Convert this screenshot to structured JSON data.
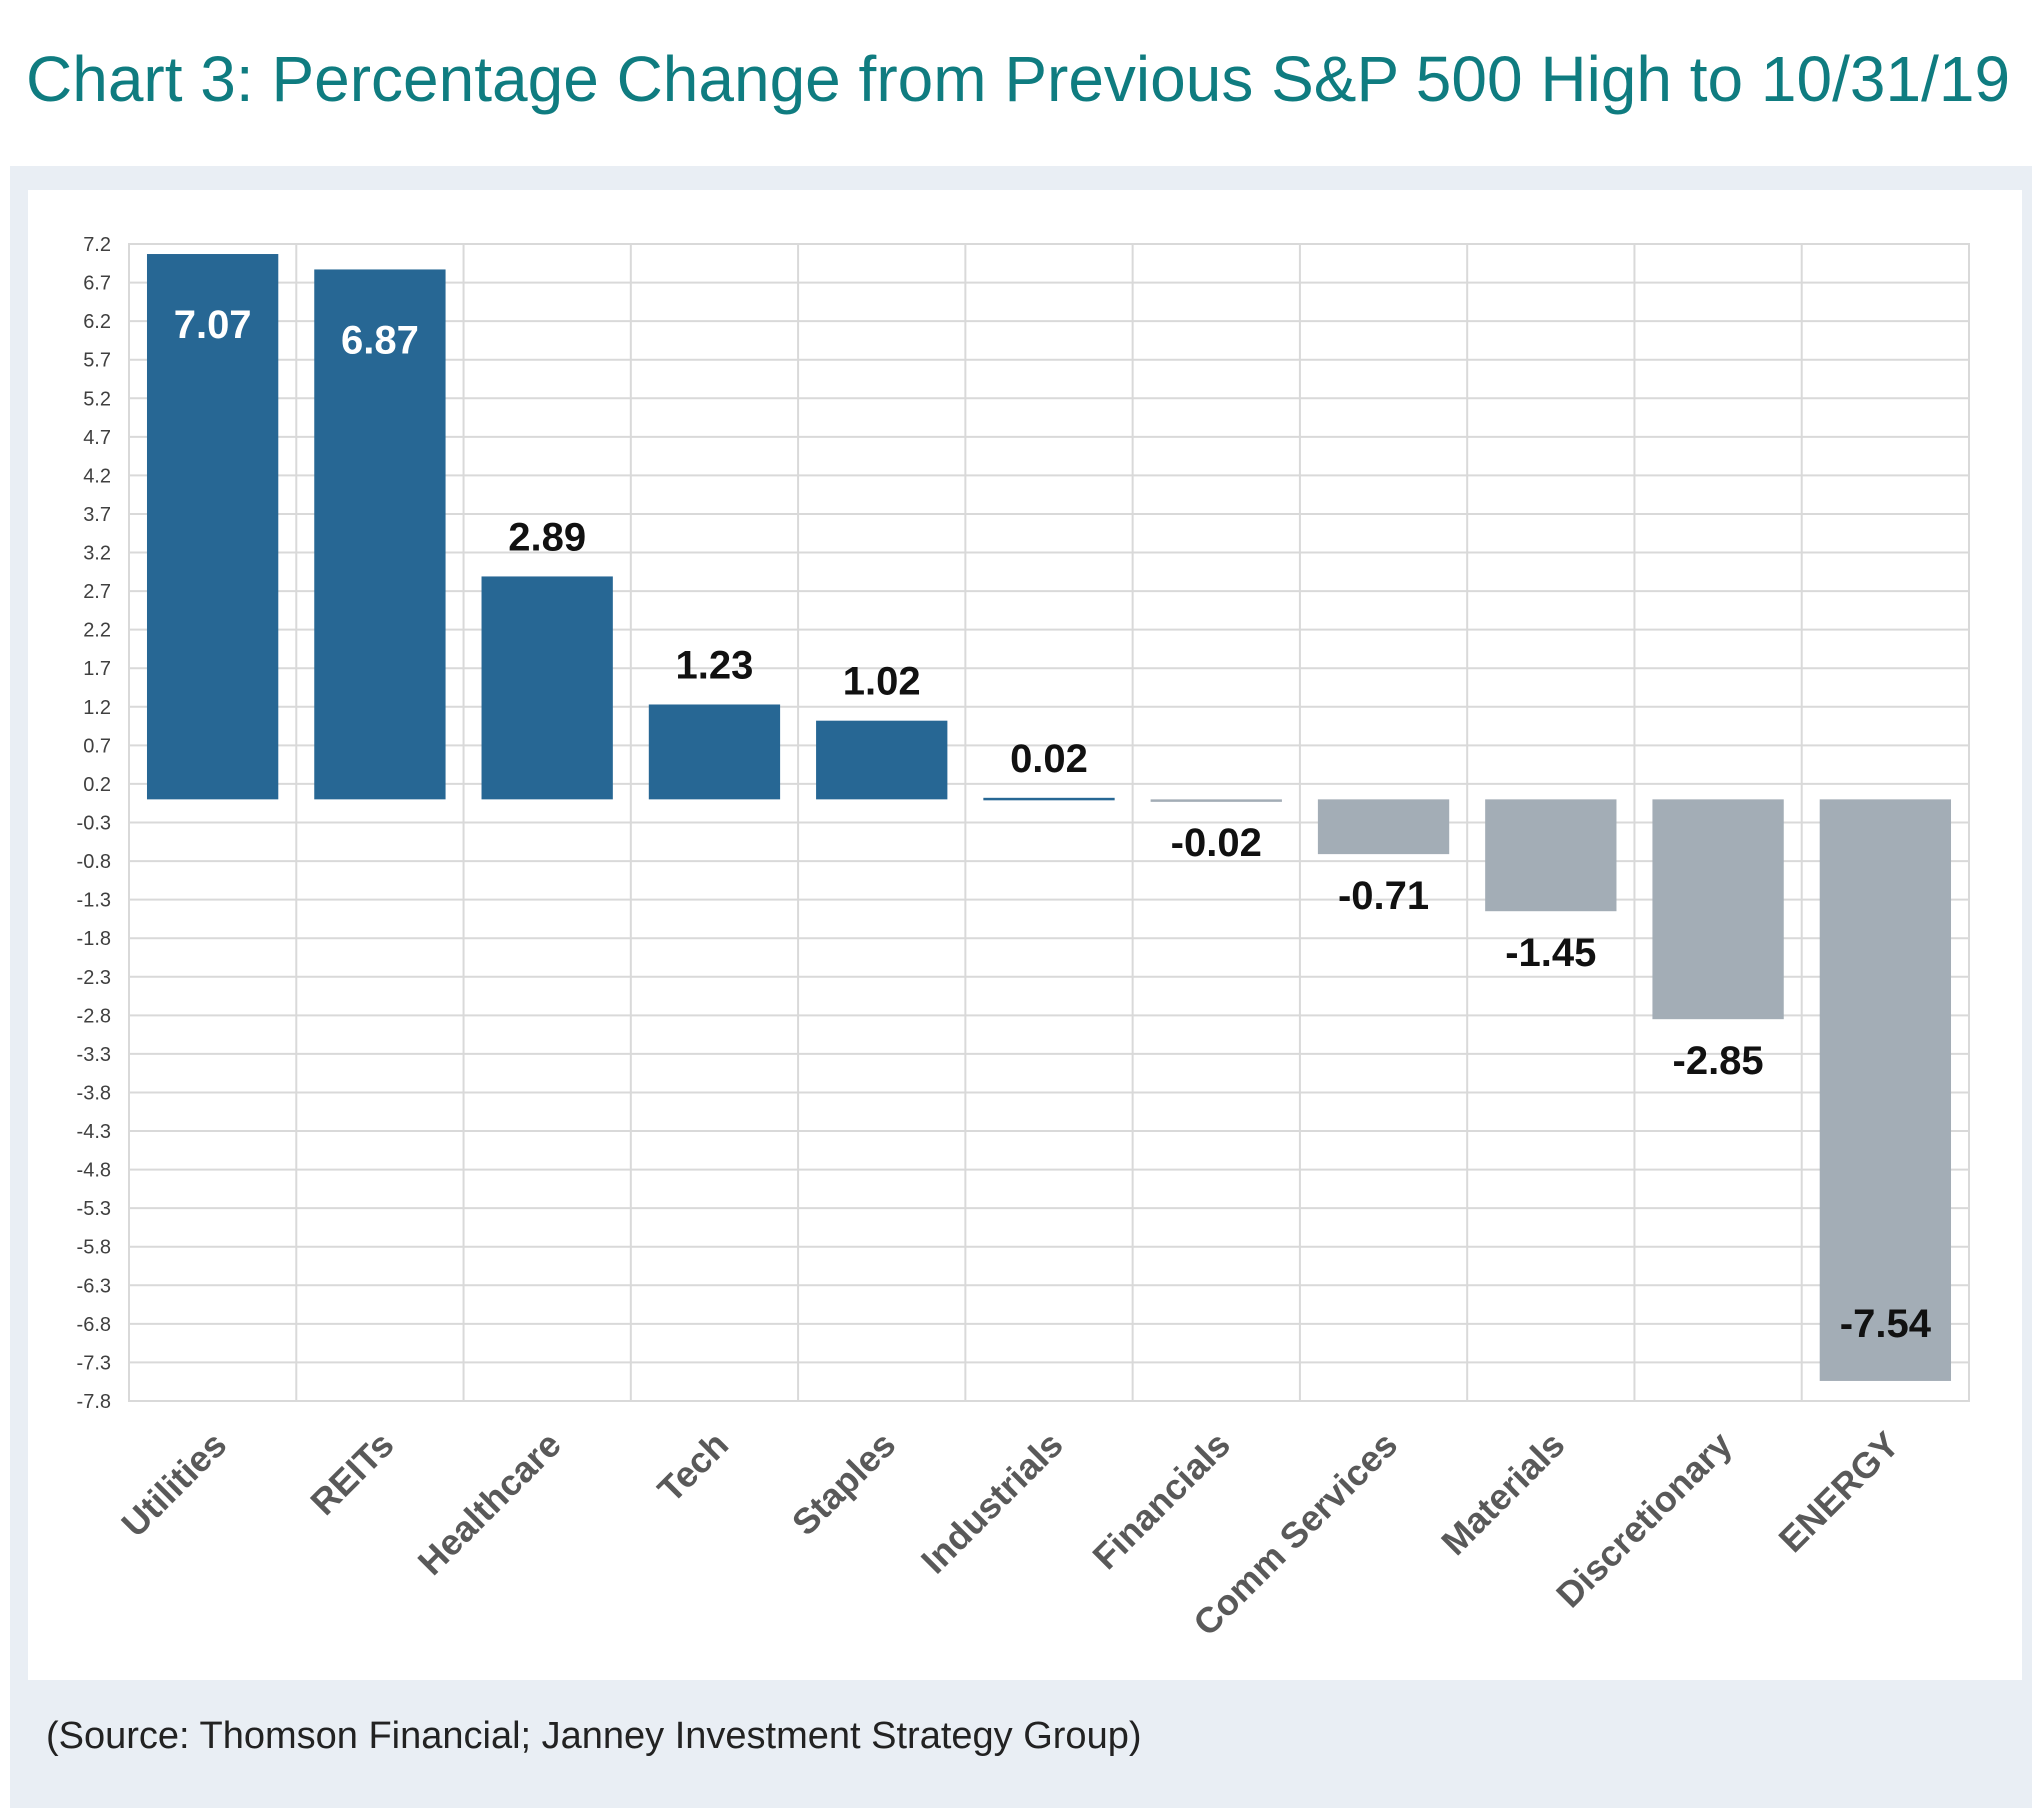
{
  "title": "Chart 3:  Percentage Change from Previous S&P 500 High to 10/31/19",
  "source": "(Source: Thomson Financial; Janney Investment Strategy Group)",
  "colors": {
    "positive": "#276794",
    "negative": "#a3adb6",
    "title": "#0f7c80",
    "grid": "#d9d9d9",
    "panel": "#e9eef4",
    "label_white": "#ffffff",
    "label_dark": "#111111",
    "category": "#595959"
  },
  "chart_data": {
    "type": "bar",
    "title": "Chart 3:  Percentage Change from Previous S&P 500 High to 10/31/19",
    "xlabel": "",
    "ylabel": "",
    "grid": true,
    "ylim": [
      -7.8,
      7.2
    ],
    "yticks": [
      "7.2",
      "6.7",
      "6.2",
      "5.7",
      "5.2",
      "4.7",
      "4.2",
      "3.7",
      "3.2",
      "2.7",
      "2.2",
      "1.7",
      "1.2",
      "0.7",
      "0.2",
      "-0.3",
      "-0.8",
      "-1.3",
      "-1.8",
      "-2.3",
      "-2.8",
      "-3.3",
      "-3.8",
      "-4.3",
      "-4.8",
      "-5.3",
      "-5.8",
      "-6.3",
      "-6.8",
      "-7.3",
      "-7.8"
    ],
    "categories": [
      "Utilities",
      "REITs",
      "Healthcare",
      "Tech",
      "Staples",
      "Industrials",
      "Financials",
      "Comm Services",
      "Materials",
      "Discretionary",
      "ENERGY"
    ],
    "values": [
      7.07,
      6.87,
      2.89,
      1.23,
      1.02,
      0.02,
      -0.02,
      -0.71,
      -1.45,
      -2.85,
      -7.54
    ],
    "data_labels": [
      "7.07",
      "6.87",
      "2.89",
      "1.23",
      "1.02",
      "0.02",
      "-0.02",
      "-0.71",
      "-1.45",
      "-2.85",
      "-7.54"
    ]
  }
}
